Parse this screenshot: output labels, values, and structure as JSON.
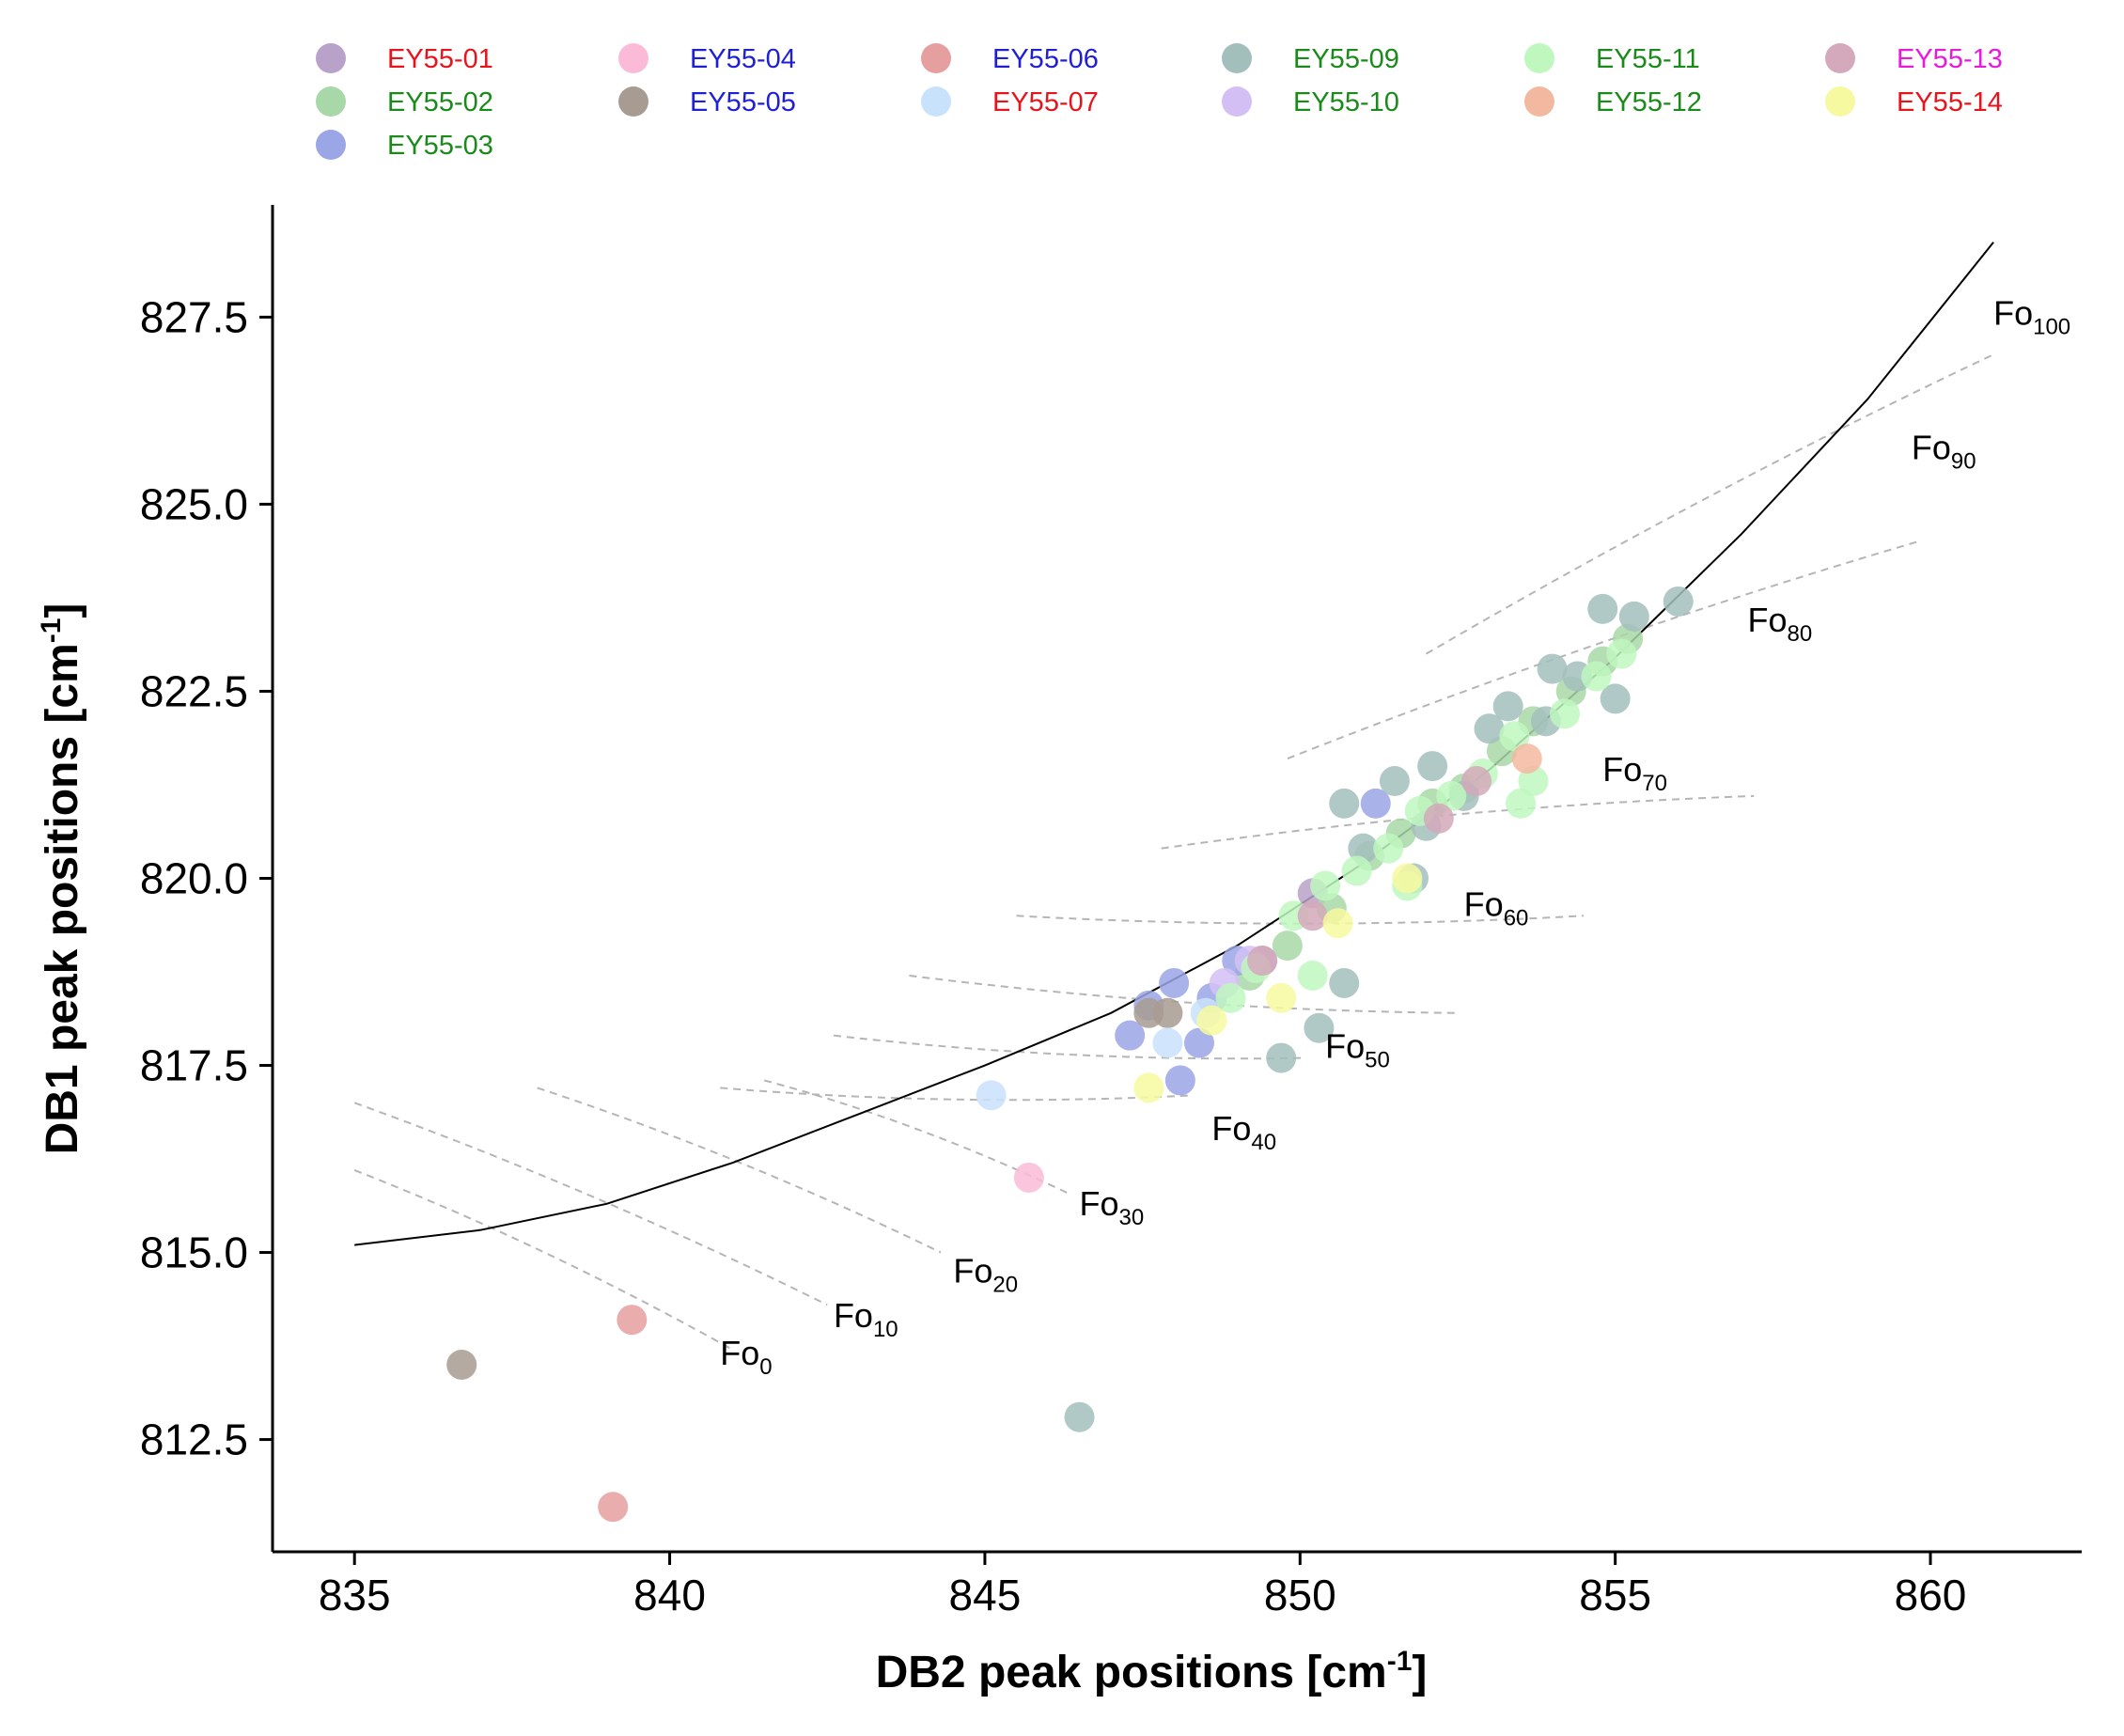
{
  "chart_data": {
    "type": "scatter",
    "xlabel": "DB2 peak positions [cm",
    "ylabel": "DB1 peak positions [cm",
    "unit_superscript": "-1",
    "xlim": [
      833.7,
      862.4
    ],
    "ylim": [
      811.0,
      829.0
    ],
    "xticks": [
      835,
      840,
      845,
      850,
      855,
      860
    ],
    "xtick_labels": [
      "835",
      "840",
      "845",
      "850",
      "855",
      "860"
    ],
    "yticks": [
      812.5,
      815.0,
      817.5,
      820.0,
      822.5,
      825.0,
      827.5
    ],
    "ytick_labels": [
      "812.5",
      "815.0",
      "817.5",
      "820.0",
      "822.5",
      "825.0",
      "827.5"
    ],
    "legend_position": "top",
    "series": [
      {
        "name": "EY55-01",
        "label_color": "#e8141c",
        "color": "#b9a2c9",
        "points": [
          [
            849.4,
            818.9
          ],
          [
            850.2,
            819.8
          ]
        ]
      },
      {
        "name": "EY55-02",
        "label_color": "#1a8a1a",
        "color": "#a8d8a8",
        "points": [
          [
            849.2,
            818.7
          ],
          [
            849.8,
            819.1
          ],
          [
            850.5,
            819.6
          ],
          [
            851.1,
            820.3
          ],
          [
            851.6,
            820.6
          ],
          [
            852.1,
            821.0
          ],
          [
            852.6,
            821.2
          ],
          [
            853.2,
            821.7
          ],
          [
            853.7,
            822.1
          ],
          [
            854.3,
            822.5
          ],
          [
            854.8,
            822.9
          ],
          [
            855.2,
            823.2
          ]
        ]
      },
      {
        "name": "EY55-03",
        "label_color": "#1a8a1a",
        "color": "#9aa6e6",
        "points": [
          [
            847.3,
            817.9
          ],
          [
            847.6,
            818.3
          ],
          [
            848.0,
            818.6
          ],
          [
            848.1,
            817.3
          ],
          [
            848.4,
            817.8
          ],
          [
            848.6,
            818.4
          ],
          [
            849.0,
            818.9
          ],
          [
            851.2,
            821.0
          ]
        ]
      },
      {
        "name": "EY55-04",
        "label_color": "#1f1fd6",
        "color": "#fbbbd8",
        "points": [
          [
            845.7,
            816.0
          ]
        ]
      },
      {
        "name": "EY55-05",
        "label_color": "#1f1fd6",
        "color": "#a89b92",
        "points": [
          [
            836.7,
            813.5
          ],
          [
            847.6,
            818.2
          ],
          [
            847.9,
            818.2
          ]
        ]
      },
      {
        "name": "EY55-06",
        "label_color": "#1f1fd6",
        "color": "#e69f9f",
        "points": [
          [
            839.4,
            814.1
          ],
          [
            839.1,
            811.6
          ]
        ]
      },
      {
        "name": "EY55-07",
        "label_color": "#e8141c",
        "color": "#c9e2fb",
        "points": [
          [
            845.1,
            817.1
          ],
          [
            847.9,
            817.8
          ],
          [
            848.5,
            818.2
          ]
        ]
      },
      {
        "name": "EY55-09",
        "label_color": "#1a8a1a",
        "color": "#a3bfbc",
        "points": [
          [
            846.5,
            812.8
          ],
          [
            849.7,
            817.6
          ],
          [
            850.3,
            818.0
          ],
          [
            850.7,
            818.6
          ],
          [
            850.7,
            821.0
          ],
          [
            851.0,
            820.4
          ],
          [
            851.5,
            821.3
          ],
          [
            851.8,
            820.0
          ],
          [
            852.1,
            821.5
          ],
          [
            852.6,
            821.1
          ],
          [
            853.0,
            822.0
          ],
          [
            853.3,
            822.3
          ],
          [
            853.9,
            822.1
          ],
          [
            854.4,
            822.7
          ],
          [
            854.8,
            823.6
          ],
          [
            855.0,
            822.4
          ],
          [
            855.3,
            823.5
          ],
          [
            856.0,
            823.7
          ],
          [
            852.0,
            820.7
          ],
          [
            854.0,
            822.8
          ]
        ]
      },
      {
        "name": "EY55-10",
        "label_color": "#1a8a1a",
        "color": "#d4bff5",
        "points": [
          [
            848.8,
            818.6
          ],
          [
            849.2,
            818.9
          ]
        ]
      },
      {
        "name": "EY55-11",
        "label_color": "#1a8a1a",
        "color": "#bff7bf",
        "points": [
          [
            848.9,
            818.4
          ],
          [
            849.3,
            818.8
          ],
          [
            849.9,
            819.5
          ],
          [
            850.4,
            819.9
          ],
          [
            850.9,
            820.1
          ],
          [
            851.4,
            820.4
          ],
          [
            851.9,
            820.9
          ],
          [
            852.4,
            821.1
          ],
          [
            852.9,
            821.4
          ],
          [
            853.4,
            821.9
          ],
          [
            853.7,
            821.3
          ],
          [
            853.5,
            821.0
          ],
          [
            854.2,
            822.2
          ],
          [
            854.7,
            822.7
          ],
          [
            855.1,
            823.0
          ],
          [
            850.2,
            818.7
          ],
          [
            851.7,
            819.9
          ]
        ]
      },
      {
        "name": "EY55-12",
        "label_color": "#1a8a1a",
        "color": "#f3b9a0",
        "points": [
          [
            853.6,
            821.6
          ]
        ]
      },
      {
        "name": "EY55-13",
        "label_color": "#e81adc",
        "color": "#d4a9bb",
        "points": [
          [
            852.2,
            820.8
          ],
          [
            852.8,
            821.3
          ],
          [
            849.4,
            818.9
          ],
          [
            850.2,
            819.5
          ]
        ]
      },
      {
        "name": "EY55-14",
        "label_color": "#e8141c",
        "color": "#f7f9a0",
        "points": [
          [
            847.6,
            817.2
          ],
          [
            849.7,
            818.4
          ],
          [
            850.6,
            819.4
          ],
          [
            851.7,
            820.0
          ],
          [
            848.6,
            818.1
          ]
        ]
      }
    ],
    "fit_curve": {
      "name": "fit",
      "color": "#000000",
      "x": [
        835,
        837,
        839,
        841,
        843,
        845,
        847,
        849,
        851,
        853,
        855,
        857,
        859,
        861
      ],
      "y": [
        815.1,
        815.3,
        815.65,
        816.2,
        816.85,
        817.5,
        818.2,
        819.1,
        820.2,
        821.45,
        822.95,
        824.6,
        826.4,
        828.5
      ]
    },
    "composition_lines": [
      {
        "label": "Fo",
        "sub": "0",
        "x": [
          835,
          841
        ],
        "y": [
          816.1,
          813.7
        ]
      },
      {
        "label": "Fo",
        "sub": "10",
        "x": [
          835,
          842.5
        ],
        "y": [
          817.0,
          814.3
        ]
      },
      {
        "label": "Fo",
        "sub": "20",
        "x": [
          837.9,
          844.3
        ],
        "y": [
          817.2,
          815.0
        ]
      },
      {
        "label": "Fo",
        "sub": "30",
        "x": [
          841.5,
          846.3
        ],
        "y": [
          817.3,
          815.8
        ]
      },
      {
        "label": "Fo",
        "sub": "40",
        "x": [
          840.8,
          848.3
        ],
        "y": [
          817.2,
          817.1
        ]
      },
      {
        "label": "Fo",
        "sub": "50",
        "x": [
          842.6,
          850.1
        ],
        "y": [
          817.9,
          817.6
        ]
      },
      {
        "label": "Fo",
        "sub": "60",
        "x": [
          843.8,
          852.5
        ],
        "y": [
          818.7,
          818.2
        ]
      },
      {
        "label": "Fo",
        "sub": "70",
        "x": [
          845.5,
          854.5
        ],
        "y": [
          819.5,
          819.5
        ]
      },
      {
        "label": "Fo",
        "sub": "80",
        "x": [
          847.8,
          857.2
        ],
        "y": [
          820.4,
          821.1
        ]
      },
      {
        "label": "Fo",
        "sub": "90",
        "x": [
          849.8,
          859.8
        ],
        "y": [
          821.6,
          824.5
        ]
      },
      {
        "label": "Fo",
        "sub": "100",
        "x": [
          852.0,
          861.0
        ],
        "y": [
          823.0,
          827.0
        ]
      }
    ],
    "composition_label_positions": [
      [
        840.8,
        813.5
      ],
      [
        842.6,
        814.0
      ],
      [
        844.5,
        814.6
      ],
      [
        846.5,
        815.5
      ],
      [
        848.6,
        816.5
      ],
      [
        850.4,
        817.6
      ],
      [
        852.6,
        819.5
      ],
      [
        854.8,
        821.3
      ],
      [
        857.1,
        823.3
      ],
      [
        859.7,
        825.6
      ],
      [
        861.0,
        827.4
      ]
    ]
  }
}
